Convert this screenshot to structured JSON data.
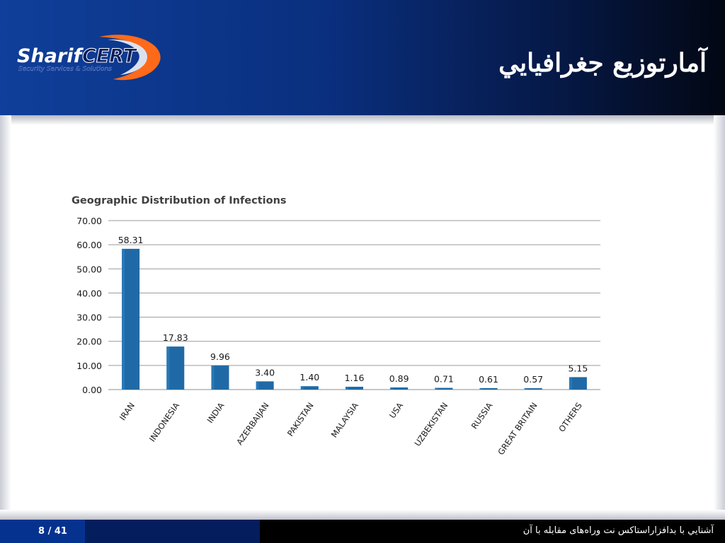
{
  "slide": {
    "title": "آمارتوزيع جغرافيايي",
    "logo_text_1": "Sharif",
    "logo_text_2": "CERT",
    "logo_tagline": "Security Services & Solutions"
  },
  "footer": {
    "page_number": "8 / 41",
    "text": "آشنايي با بدافزاراستاكس نت وراه‌های مقابله با آن"
  },
  "colors": {
    "bar": "#1f6aa6",
    "header_left": "#0f3f9a",
    "header_right": "#020713"
  },
  "chart_data": {
    "type": "bar",
    "title": "Geographic Distribution of Infections",
    "categories": [
      "IRAN",
      "INDONESIA",
      "INDIA",
      "AZERBAIJAN",
      "PAKISTAN",
      "MALAYSIA",
      "USA",
      "UZBEKISTAN",
      "RUSSIA",
      "GREAT BRITAIN",
      "OTHERS"
    ],
    "values": [
      58.31,
      17.83,
      9.96,
      3.4,
      1.4,
      1.16,
      0.89,
      0.71,
      0.61,
      0.57,
      5.15
    ],
    "value_labels": [
      "58.31",
      "17.83",
      "9.96",
      "3.40",
      "1.40",
      "1.16",
      "0.89",
      "0.71",
      "0.61",
      "0.57",
      "5.15"
    ],
    "yticks": [
      "0.00",
      "10.00",
      "20.00",
      "30.00",
      "40.00",
      "50.00",
      "60.00",
      "70.00"
    ],
    "ylim": [
      0,
      70
    ],
    "xlabel": "",
    "ylabel": "",
    "grid": true,
    "legend": "none"
  }
}
